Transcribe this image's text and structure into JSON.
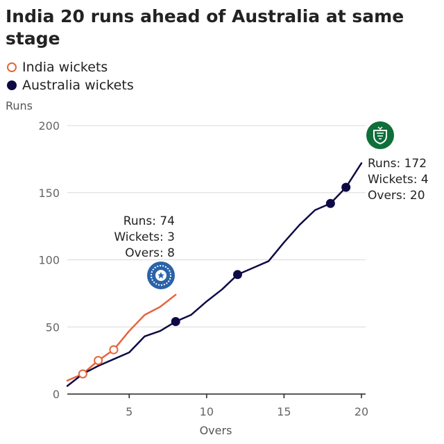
{
  "colors": {
    "india": "#e5643c",
    "australia": "#0e0a45",
    "grid": "#d9d9d9",
    "axis": "#222222",
    "tick_text": "#666666",
    "australia_badge": "#0f6e3a",
    "india_badge": "#2a63a8"
  },
  "chart_data": {
    "type": "line",
    "title": "India 20 runs ahead of Australia at same stage",
    "xlabel": "Overs",
    "ylabel": "Runs",
    "xlim": [
      1,
      20
    ],
    "ylim": [
      0,
      200
    ],
    "x_ticks": [
      5,
      10,
      15,
      20
    ],
    "y_ticks": [
      0,
      50,
      100,
      150,
      200
    ],
    "grid": true,
    "legend_position": "top-left",
    "series": [
      {
        "name": "India",
        "key": "india",
        "x": [
          1,
          2,
          3,
          4,
          5,
          6,
          7,
          8
        ],
        "y": [
          10,
          15,
          25,
          33,
          47,
          59,
          65,
          74
        ],
        "wicket_overs": [
          2,
          3,
          4
        ]
      },
      {
        "name": "Australia",
        "key": "australia",
        "x": [
          1,
          2,
          3,
          4,
          5,
          6,
          7,
          8,
          9,
          10,
          11,
          12,
          13,
          14,
          15,
          16,
          17,
          18,
          19,
          20
        ],
        "y": [
          6,
          15,
          21,
          26,
          31,
          43,
          47,
          54,
          59,
          69,
          78,
          89,
          94,
          99,
          113,
          126,
          137,
          142,
          154,
          172
        ],
        "wicket_overs": [
          8,
          12,
          18,
          19
        ]
      }
    ],
    "legend": [
      "India wickets",
      "Australia wickets"
    ],
    "annotations": {
      "india": {
        "runs": "Runs: 74",
        "wickets": "Wickets: 3",
        "overs": "Overs: 8"
      },
      "australia": {
        "runs": "Runs: 172",
        "wickets": "Wickets: 4",
        "overs": "Overs: 20"
      }
    }
  }
}
